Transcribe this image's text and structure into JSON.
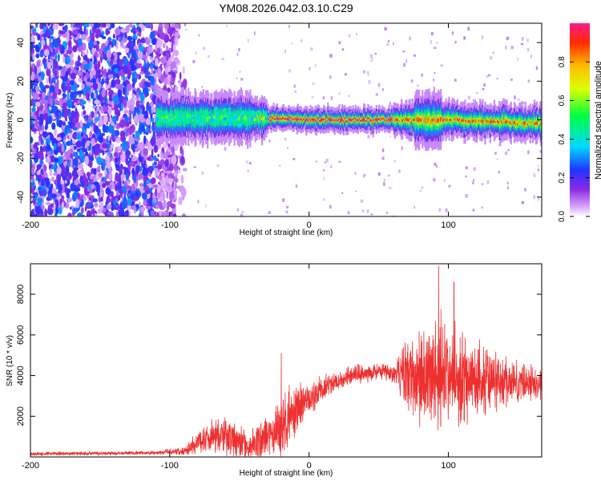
{
  "title": "YM08.2026.042.03.10.C29",
  "chart_data": [
    {
      "type": "heatmap",
      "title": "YM08.2026.042.03.10.C29",
      "xlabel": "Height of straight line (km)",
      "ylabel": "Frequency (Hz)",
      "xlim": [
        -200,
        167
      ],
      "ylim": [
        -50,
        50
      ],
      "xticks": [
        -200,
        -100,
        0,
        100
      ],
      "xtick_labels": [
        "-200",
        "-100",
        "0",
        "100"
      ],
      "yticks": [
        -40,
        -20,
        0,
        20,
        40
      ],
      "ytick_labels": [
        "-40",
        "-20",
        "0",
        "20",
        "40"
      ],
      "colorbar": {
        "label": "Normalized spectral amplitude",
        "range": [
          0,
          1
        ],
        "ticks": [
          0.0,
          0.2,
          0.4,
          0.6,
          0.8
        ],
        "tick_labels": [
          "0.0",
          "0.2",
          "0.4",
          "0.6",
          "0.8"
        ],
        "colormap": "rainbow (white-violet-blue-cyan-green-yellow-orange-red)"
      },
      "noise_region_x": [
        -200,
        -95
      ],
      "signal_band": {
        "x_start": -110,
        "x_end": 167,
        "center_freq": [
          [
            -110,
            1
          ],
          [
            -40,
            1
          ],
          [
            0,
            0
          ],
          [
            60,
            0
          ],
          [
            100,
            0
          ],
          [
            167,
            -2
          ]
        ],
        "peak_amplitude_region": [
          -30,
          60
        ]
      }
    },
    {
      "type": "line",
      "xlabel": "Height of straight line (km)",
      "ylabel": "SNR (10 * v/v)",
      "xlim": [
        -200,
        167
      ],
      "ylim": [
        0,
        9500
      ],
      "xticks": [
        -200,
        -100,
        0,
        100
      ],
      "xtick_labels": [
        "-200",
        "-100",
        "0",
        "100"
      ],
      "yticks": [
        2000,
        4000,
        6000,
        8000
      ],
      "ytick_labels": [
        "2000",
        "4000",
        "6000",
        "8000"
      ],
      "color": "#ee3030",
      "envelope": [
        {
          "x": -200,
          "mean": 150,
          "spread": 100
        },
        {
          "x": -110,
          "mean": 200,
          "spread": 120
        },
        {
          "x": -90,
          "mean": 300,
          "spread": 250
        },
        {
          "x": -80,
          "mean": 700,
          "spread": 700
        },
        {
          "x": -70,
          "mean": 1100,
          "spread": 900
        },
        {
          "x": -58,
          "mean": 1000,
          "spread": 1200
        },
        {
          "x": -45,
          "mean": 500,
          "spread": 800
        },
        {
          "x": -38,
          "mean": 700,
          "spread": 900
        },
        {
          "x": -20,
          "mean": 1400,
          "spread": 2000
        },
        {
          "x": -10,
          "mean": 2300,
          "spread": 1500
        },
        {
          "x": 0,
          "mean": 2800,
          "spread": 900
        },
        {
          "x": 15,
          "mean": 3600,
          "spread": 700
        },
        {
          "x": 30,
          "mean": 4000,
          "spread": 600
        },
        {
          "x": 50,
          "mean": 4200,
          "spread": 500
        },
        {
          "x": 62,
          "mean": 4100,
          "spread": 600
        },
        {
          "x": 70,
          "mean": 4000,
          "spread": 2000
        },
        {
          "x": 90,
          "mean": 4000,
          "spread": 3600
        },
        {
          "x": 110,
          "mean": 3900,
          "spread": 2600
        },
        {
          "x": 130,
          "mean": 3700,
          "spread": 1800
        },
        {
          "x": 150,
          "mean": 3700,
          "spread": 1200
        },
        {
          "x": 167,
          "mean": 3600,
          "spread": 1000
        }
      ],
      "peaks": [
        {
          "x": -20,
          "y": 5100
        },
        {
          "x": 93,
          "y": 9400
        },
        {
          "x": 104,
          "y": 8600
        }
      ]
    }
  ]
}
